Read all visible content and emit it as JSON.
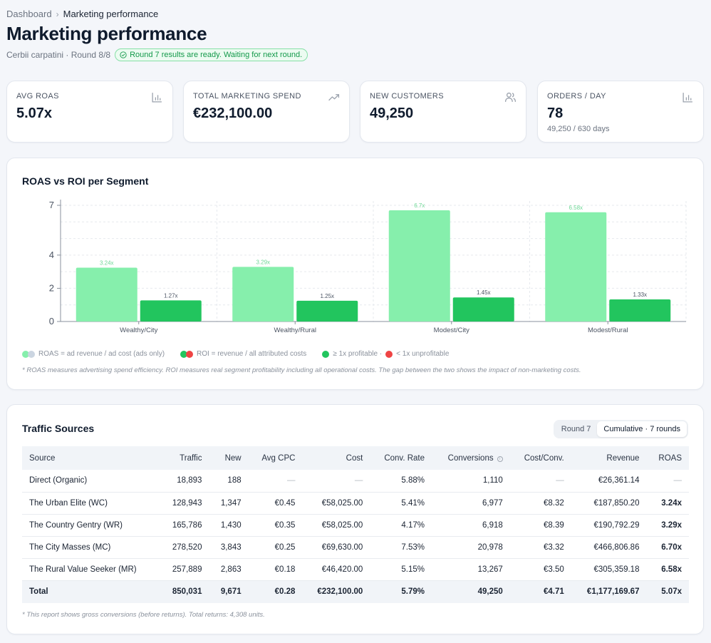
{
  "breadcrumb": {
    "root": "Dashboard",
    "separator": "›",
    "current": "Marketing performance"
  },
  "page": {
    "title": "Marketing performance",
    "subtitle": "Cerbii carpatini · Round 8/8",
    "status": "Round 7 results are ready. Waiting for next round."
  },
  "kpis": [
    {
      "label": "AVG ROAS",
      "value": "5.07x",
      "sub": "",
      "icon": "bar-chart-icon"
    },
    {
      "label": "TOTAL MARKETING SPEND",
      "value": "€232,100.00",
      "sub": "",
      "icon": "trending-up-icon"
    },
    {
      "label": "NEW CUSTOMERS",
      "value": "49,250",
      "sub": "",
      "icon": "users-icon"
    },
    {
      "label": "ORDERS / DAY",
      "value": "78",
      "sub": "49,250 / 630 days",
      "icon": "bar-chart-icon"
    }
  ],
  "chart": {
    "title": "ROAS vs ROI per Segment",
    "legend": {
      "roas": "ROAS = ad revenue / ad cost (ads only)",
      "roi": "ROI = revenue / all attributed costs",
      "profitable": "≥ 1x profitable ·",
      "unprofitable": "< 1x unprofitable"
    },
    "note": "* ROAS measures advertising spend efficiency. ROI measures real segment profitability including all operational costs. The gap between the two shows the impact of non-marketing costs."
  },
  "chart_data": {
    "type": "bar",
    "categories": [
      "Wealthy/City",
      "Wealthy/Rural",
      "Modest/City",
      "Modest/Rural"
    ],
    "series": [
      {
        "values": [
          3.24,
          3.29,
          6.7,
          6.58
        ],
        "labels": [
          "3.24x",
          "3.29x",
          "6.7x",
          "6.58x"
        ],
        "color": "#86efac"
      },
      {
        "values": [
          1.27,
          1.25,
          1.45,
          1.33
        ],
        "labels": [
          "1.27x",
          "1.25x",
          "1.45x",
          "1.33x"
        ],
        "color": "#22c55e"
      }
    ],
    "yticks": [
      0,
      2,
      4,
      7
    ],
    "ylim": [
      0,
      7
    ],
    "grid": true,
    "colors": {
      "roas_light": "#86efac",
      "roas_grey": "#cbd5e1",
      "roi_green": "#22c55e",
      "roi_red": "#ef4444"
    }
  },
  "table": {
    "title": "Traffic Sources",
    "toggle": {
      "options": [
        "Round 7",
        "Cumulative · 7 rounds"
      ],
      "selected": "Cumulative · 7 rounds"
    },
    "columns": [
      "Source",
      "Traffic",
      "New",
      "Avg CPC",
      "Cost",
      "Conv. Rate",
      "Conversions",
      "Cost/Conv.",
      "Revenue",
      "ROAS"
    ],
    "rows": [
      [
        "Direct (Organic)",
        "18,893",
        "188",
        "—",
        "—",
        "5.88%",
        "1,110",
        "—",
        "€26,361.14",
        "—"
      ],
      [
        "The Urban Elite (WC)",
        "128,943",
        "1,347",
        "€0.45",
        "€58,025.00",
        "5.41%",
        "6,977",
        "€8.32",
        "€187,850.20",
        "3.24x"
      ],
      [
        "The Country Gentry (WR)",
        "165,786",
        "1,430",
        "€0.35",
        "€58,025.00",
        "4.17%",
        "6,918",
        "€8.39",
        "€190,792.29",
        "3.29x"
      ],
      [
        "The City Masses (MC)",
        "278,520",
        "3,843",
        "€0.25",
        "€69,630.00",
        "7.53%",
        "20,978",
        "€3.32",
        "€466,806.86",
        "6.70x"
      ],
      [
        "The Rural Value Seeker (MR)",
        "257,889",
        "2,863",
        "€0.18",
        "€46,420.00",
        "5.15%",
        "13,267",
        "€3.50",
        "€305,359.18",
        "6.58x"
      ]
    ],
    "total": [
      "Total",
      "850,031",
      "9,671",
      "€0.28",
      "€232,100.00",
      "5.79%",
      "49,250",
      "€4.71",
      "€1,177,169.67",
      "5.07x"
    ],
    "note": "* This report shows gross conversions (before returns). Total returns: 4,308 units."
  }
}
